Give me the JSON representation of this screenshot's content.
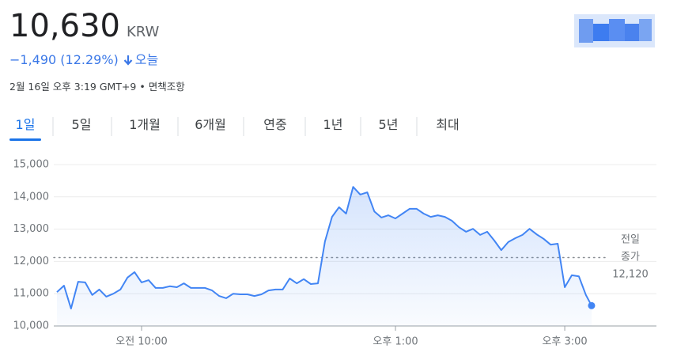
{
  "header": {
    "price": "10,630",
    "currency": "KRW",
    "change": "−1,490 (12.29%)",
    "period": "오늘",
    "timestamp": "2월 16일 오후 3:19 GMT+9",
    "separator": "•",
    "disclaimer": "면책조항"
  },
  "tabs": {
    "items": [
      "1일",
      "5일",
      "1개월",
      "6개월",
      "연중",
      "1년",
      "5년",
      "최대"
    ],
    "selected": 0
  },
  "chart_data": {
    "type": "line",
    "color": "#4285f4",
    "x": [
      "09:00",
      "09:05",
      "09:10",
      "09:15",
      "09:20",
      "09:25",
      "09:30",
      "09:35",
      "09:40",
      "09:45",
      "09:50",
      "09:55",
      "10:00",
      "10:05",
      "10:10",
      "10:15",
      "10:20",
      "10:25",
      "10:30",
      "10:35",
      "10:40",
      "10:45",
      "10:50",
      "10:55",
      "11:00",
      "11:05",
      "11:10",
      "11:15",
      "11:20",
      "11:25",
      "11:30",
      "11:35",
      "11:40",
      "11:45",
      "11:50",
      "11:55",
      "12:00",
      "12:05",
      "12:10",
      "12:15",
      "12:20",
      "12:25",
      "12:30",
      "12:35",
      "12:40",
      "12:45",
      "12:50",
      "12:55",
      "13:00",
      "13:05",
      "13:10",
      "13:15",
      "13:20",
      "13:25",
      "13:30",
      "13:35",
      "13:40",
      "13:45",
      "13:50",
      "13:55",
      "14:00",
      "14:05",
      "14:10",
      "14:15",
      "14:20",
      "14:25",
      "14:30",
      "14:35",
      "14:40",
      "14:45",
      "14:50",
      "14:55",
      "15:00",
      "15:05",
      "15:10",
      "15:15",
      "15:19"
    ],
    "values": [
      11050,
      11250,
      10540,
      11370,
      11350,
      10960,
      11130,
      10910,
      11000,
      11130,
      11500,
      11670,
      11350,
      11420,
      11180,
      11180,
      11230,
      11200,
      11320,
      11180,
      11180,
      11180,
      11100,
      10930,
      10860,
      11000,
      10980,
      10980,
      10930,
      10980,
      11100,
      11130,
      11130,
      11470,
      11320,
      11450,
      11300,
      11320,
      12620,
      13380,
      13680,
      13480,
      14310,
      14070,
      14140,
      13550,
      13360,
      13430,
      13330,
      13480,
      13630,
      13630,
      13480,
      13380,
      13430,
      13380,
      13260,
      13060,
      12920,
      13010,
      12820,
      12920,
      12650,
      12350,
      12600,
      12720,
      12820,
      13010,
      12840,
      12700,
      12520,
      12550,
      11200,
      11570,
      11540,
      10960,
      10630
    ],
    "xlim": [
      "09:00",
      "16:05"
    ],
    "xticks": [
      {
        "value": "10:00",
        "label": "오전 10:00"
      },
      {
        "value": "13:00",
        "label": "오후 1:00"
      },
      {
        "value": "15:00",
        "label": "오후 3:00"
      }
    ],
    "ylim": [
      10000,
      15000
    ],
    "yticks": [
      {
        "value": 10000,
        "label": "10,000"
      },
      {
        "value": 11000,
        "label": "11,000"
      },
      {
        "value": 12000,
        "label": "12,000"
      },
      {
        "value": 13000,
        "label": "13,000"
      },
      {
        "value": 14000,
        "label": "14,000"
      },
      {
        "value": 15000,
        "label": "15,000"
      }
    ],
    "grid": true,
    "reference_line": {
      "value": 12120,
      "value_label": "12,120",
      "label_lines": [
        "전일",
        "종가"
      ]
    }
  }
}
